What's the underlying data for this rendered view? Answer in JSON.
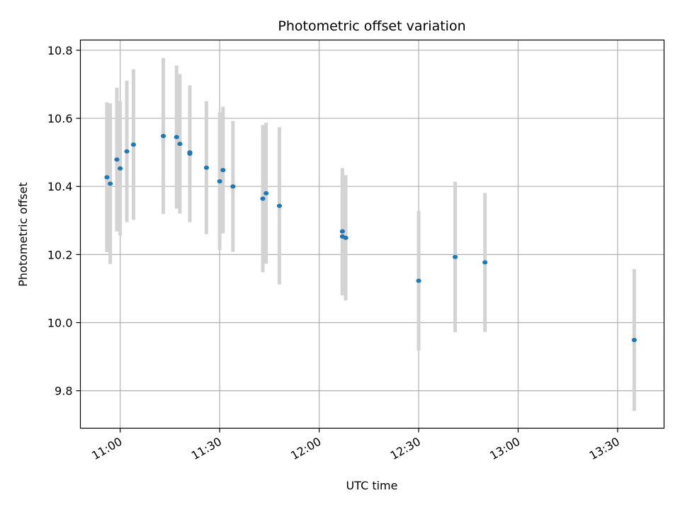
{
  "chart_data": {
    "type": "scatter",
    "title": "Photometric offset variation",
    "xlabel": "UTC time",
    "ylabel": "Photometric offset",
    "x_ticks": [
      "11:00",
      "11:30",
      "12:00",
      "12:30",
      "13:00",
      "13:30"
    ],
    "y_ticks": [
      "9.8",
      "10.0",
      "10.2",
      "10.4",
      "10.6",
      "10.8"
    ],
    "xlim": [
      "10:48",
      "13:44"
    ],
    "ylim": [
      9.69,
      10.83
    ],
    "grid": true,
    "colors": {
      "point": "#1f77b4",
      "errorbar": "#d3d3d3",
      "grid": "#b0b0b0"
    },
    "points": [
      {
        "x": "10:56",
        "y": 10.427,
        "ylow": 10.207,
        "yhigh": 10.647
      },
      {
        "x": "10:57",
        "y": 10.408,
        "ylow": 10.172,
        "yhigh": 10.644
      },
      {
        "x": "10:59",
        "y": 10.479,
        "ylow": 10.268,
        "yhigh": 10.69
      },
      {
        "x": "11:00",
        "y": 10.453,
        "ylow": 10.256,
        "yhigh": 10.65
      },
      {
        "x": "11:02",
        "y": 10.503,
        "ylow": 10.295,
        "yhigh": 10.711
      },
      {
        "x": "11:04",
        "y": 10.523,
        "ylow": 10.302,
        "yhigh": 10.744
      },
      {
        "x": "11:13",
        "y": 10.548,
        "ylow": 10.319,
        "yhigh": 10.777
      },
      {
        "x": "11:17",
        "y": 10.545,
        "ylow": 10.335,
        "yhigh": 10.755
      },
      {
        "x": "11:18",
        "y": 10.525,
        "ylow": 10.32,
        "yhigh": 10.73
      },
      {
        "x": "11:21",
        "y": 10.496,
        "ylow": 10.295,
        "yhigh": 10.697
      },
      {
        "x": "11:21",
        "y": 10.5,
        "ylow": 10.307,
        "yhigh": 10.693
      },
      {
        "x": "11:26",
        "y": 10.455,
        "ylow": 10.26,
        "yhigh": 10.65
      },
      {
        "x": "11:30",
        "y": 10.415,
        "ylow": 10.213,
        "yhigh": 10.617
      },
      {
        "x": "11:31",
        "y": 10.448,
        "ylow": 10.262,
        "yhigh": 10.634
      },
      {
        "x": "11:34",
        "y": 10.4,
        "ylow": 10.208,
        "yhigh": 10.592
      },
      {
        "x": "11:43",
        "y": 10.364,
        "ylow": 10.148,
        "yhigh": 10.58
      },
      {
        "x": "11:44",
        "y": 10.38,
        "ylow": 10.173,
        "yhigh": 10.587
      },
      {
        "x": "11:48",
        "y": 10.343,
        "ylow": 10.112,
        "yhigh": 10.574
      },
      {
        "x": "12:07",
        "y": 10.268,
        "ylow": 10.082,
        "yhigh": 10.454
      },
      {
        "x": "12:07",
        "y": 10.253,
        "ylow": 10.08,
        "yhigh": 10.44
      },
      {
        "x": "12:08",
        "y": 10.249,
        "ylow": 10.065,
        "yhigh": 10.433
      },
      {
        "x": "12:30",
        "y": 10.123,
        "ylow": 9.918,
        "yhigh": 10.328
      },
      {
        "x": "12:41",
        "y": 10.193,
        "ylow": 9.972,
        "yhigh": 10.414
      },
      {
        "x": "12:50",
        "y": 10.177,
        "ylow": 9.973,
        "yhigh": 10.381
      },
      {
        "x": "13:35",
        "y": 9.949,
        "ylow": 9.741,
        "yhigh": 10.157
      }
    ]
  }
}
